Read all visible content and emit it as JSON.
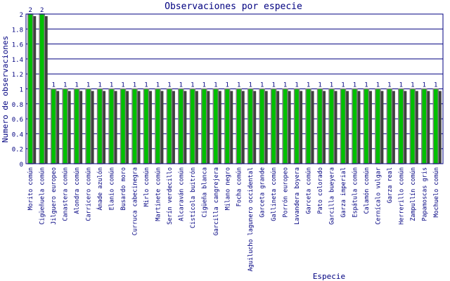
{
  "chart_data": {
    "type": "bar",
    "title": "Observaciones por especie",
    "xlabel": "Especie",
    "ylabel": "Numero de observaciones",
    "ylim": [
      0,
      2
    ],
    "yticks": [
      "0",
      "0.2",
      "0.4",
      "0.6",
      "0.8",
      "1",
      "1.2",
      "1.4",
      "1.6",
      "1.8",
      "2"
    ],
    "grid": true,
    "colors": {
      "bar": "#00c000",
      "bar_border": "#808080",
      "shadow": "#404040",
      "axis": "#000080",
      "text": "#000080"
    },
    "categories": [
      "Morito común",
      "Cigüeñuela común",
      "Jilguero europeo",
      "Canastera común",
      "Alondra común",
      "Carricero común",
      "Ánade azulón",
      "Elanio común",
      "Busardo moro",
      "Curruca cabecinegra",
      "Mirlo común",
      "Martinete común",
      "Serín verdecillo",
      "Alcaraván común",
      "Cistícola buitrón",
      "Cigüeña blanca",
      "Garcilla cangrejera",
      "Milano negro",
      "Focha común",
      "Aguilucho lagunero occidental",
      "Garceta grande",
      "Gallineta común",
      "Porrón europeo",
      "Lavandera boyera",
      "Garceta común",
      "Pato colorado",
      "Garcilla bueyera",
      "Garza imperial",
      "Espátula común",
      "Calamón común",
      "Cernícalo vulgar",
      "Garza real",
      "Herrerillo común",
      "Zampullín común",
      "Papamoscas gris",
      "Mochuelo común"
    ],
    "values": [
      2,
      2,
      1,
      1,
      1,
      1,
      1,
      1,
      1,
      1,
      1,
      1,
      1,
      1,
      1,
      1,
      1,
      1,
      1,
      1,
      1,
      1,
      1,
      1,
      1,
      1,
      1,
      1,
      1,
      1,
      1,
      1,
      1,
      1,
      1,
      1
    ]
  }
}
